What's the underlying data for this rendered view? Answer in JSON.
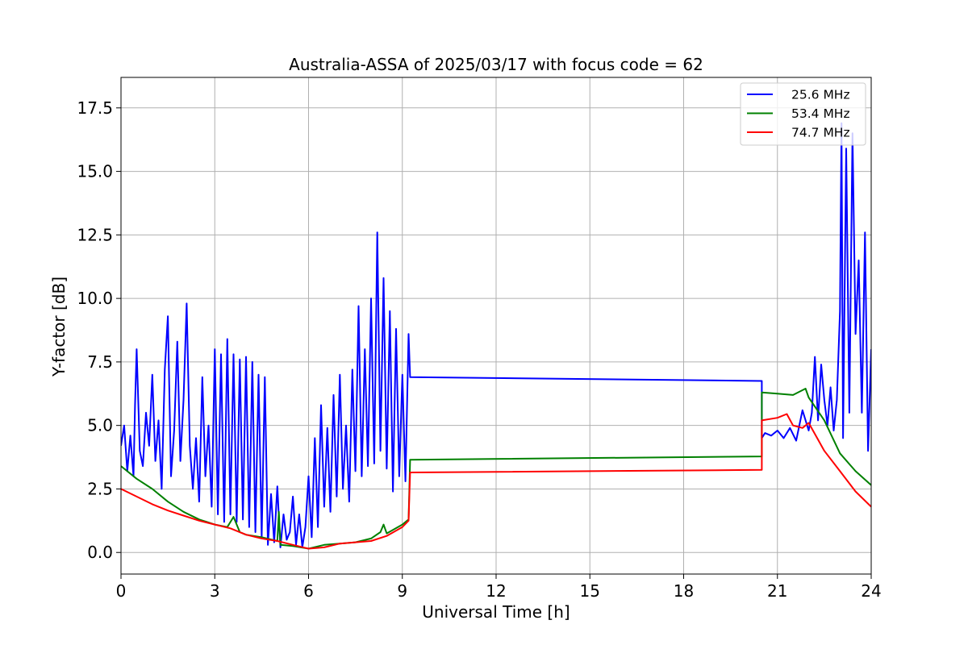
{
  "chart_data": {
    "type": "line",
    "title": "Australia-ASSA of 2025/03/17 with focus code = 62",
    "xlabel": "Universal Time [h]",
    "ylabel": "Y-factor [dB]",
    "xlim": [
      0,
      24
    ],
    "ylim": [
      -0.85,
      18.7
    ],
    "x_ticks": [
      0,
      3,
      6,
      9,
      12,
      15,
      18,
      21,
      24
    ],
    "x_tick_labels": [
      "0",
      "3",
      "6",
      "9",
      "12",
      "15",
      "18",
      "21",
      "24"
    ],
    "y_ticks": [
      0.0,
      2.5,
      5.0,
      7.5,
      10.0,
      12.5,
      15.0,
      17.5
    ],
    "y_tick_labels": [
      "0.0",
      "2.5",
      "5.0",
      "7.5",
      "10.0",
      "12.5",
      "15.0",
      "17.5"
    ],
    "grid": true,
    "legend_position": "upper right",
    "series": [
      {
        "name": "25.6 MHz",
        "color": "#0000ff",
        "x": [
          0.0,
          0.1,
          0.2,
          0.3,
          0.4,
          0.45,
          0.5,
          0.6,
          0.7,
          0.8,
          0.9,
          1.0,
          1.1,
          1.2,
          1.3,
          1.4,
          1.5,
          1.6,
          1.7,
          1.8,
          1.9,
          2.0,
          2.1,
          2.2,
          2.3,
          2.4,
          2.5,
          2.6,
          2.7,
          2.8,
          2.9,
          3.0,
          3.1,
          3.2,
          3.3,
          3.4,
          3.5,
          3.6,
          3.7,
          3.8,
          3.9,
          4.0,
          4.1,
          4.2,
          4.3,
          4.4,
          4.5,
          4.6,
          4.7,
          4.8,
          4.9,
          5.0,
          5.1,
          5.2,
          5.3,
          5.4,
          5.5,
          5.6,
          5.7,
          5.8,
          5.9,
          6.0,
          6.1,
          6.2,
          6.3,
          6.4,
          6.5,
          6.6,
          6.7,
          6.8,
          6.9,
          7.0,
          7.1,
          7.2,
          7.3,
          7.4,
          7.5,
          7.6,
          7.7,
          7.8,
          7.9,
          8.0,
          8.1,
          8.2,
          8.3,
          8.4,
          8.5,
          8.6,
          8.7,
          8.8,
          8.9,
          9.0,
          9.1,
          9.2,
          9.25,
          20.5,
          20.5,
          20.6,
          20.8,
          21.0,
          21.2,
          21.4,
          21.6,
          21.8,
          22.0,
          22.1,
          22.2,
          22.3,
          22.4,
          22.5,
          22.6,
          22.7,
          22.8,
          22.9,
          23.0,
          23.05,
          23.1,
          23.2,
          23.3,
          23.4,
          23.5,
          23.6,
          23.7,
          23.8,
          23.9,
          24.0
        ],
        "y": [
          4.2,
          5.0,
          3.2,
          4.6,
          3.0,
          5.8,
          8.0,
          4.0,
          3.4,
          5.5,
          4.2,
          7.0,
          3.6,
          5.2,
          2.5,
          7.2,
          9.3,
          3.0,
          4.8,
          8.3,
          3.6,
          6.0,
          9.8,
          4.2,
          2.5,
          4.5,
          2.0,
          6.9,
          3.0,
          5.0,
          1.8,
          8.0,
          1.5,
          7.8,
          1.2,
          8.4,
          1.5,
          7.8,
          1.2,
          7.6,
          1.3,
          7.7,
          1.0,
          7.5,
          0.8,
          7.0,
          0.6,
          6.9,
          0.3,
          2.3,
          0.4,
          2.6,
          0.2,
          1.5,
          0.5,
          0.8,
          2.2,
          0.3,
          1.5,
          0.2,
          1.0,
          3.0,
          0.6,
          4.5,
          1.0,
          5.8,
          1.8,
          4.9,
          1.6,
          6.2,
          2.2,
          7.0,
          2.5,
          5.0,
          2.0,
          7.2,
          3.2,
          9.7,
          3.0,
          8.0,
          3.4,
          10.0,
          3.5,
          12.6,
          4.0,
          10.8,
          3.3,
          9.5,
          2.4,
          8.8,
          3.0,
          7.0,
          2.8,
          8.6,
          6.9,
          6.75,
          4.5,
          4.7,
          4.6,
          4.8,
          4.5,
          4.9,
          4.4,
          5.6,
          4.8,
          5.5,
          7.7,
          5.2,
          7.4,
          6.0,
          5.0,
          6.5,
          4.8,
          6.0,
          9.5,
          16.9,
          4.5,
          15.9,
          5.5,
          16.5,
          8.6,
          11.5,
          5.5,
          12.6,
          4.0,
          8.0
        ]
      },
      {
        "name": "53.4 MHz",
        "color": "#008000",
        "x": [
          0.0,
          0.5,
          1.0,
          1.5,
          2.0,
          2.5,
          3.0,
          3.4,
          3.6,
          3.8,
          4.0,
          4.5,
          5.0,
          5.05,
          5.1,
          5.5,
          6.0,
          6.5,
          7.0,
          7.5,
          8.0,
          8.3,
          8.4,
          8.5,
          9.0,
          9.2,
          9.25,
          20.5,
          20.5,
          21.0,
          21.5,
          21.9,
          22.0,
          22.5,
          23.0,
          23.5,
          24.0
        ],
        "y": [
          3.4,
          2.9,
          2.5,
          2.0,
          1.6,
          1.3,
          1.1,
          1.0,
          1.4,
          0.8,
          0.7,
          0.6,
          0.45,
          1.6,
          0.3,
          0.25,
          0.15,
          0.3,
          0.35,
          0.4,
          0.55,
          0.8,
          1.1,
          0.75,
          1.1,
          1.3,
          3.65,
          3.78,
          6.3,
          6.25,
          6.2,
          6.45,
          6.1,
          5.2,
          3.9,
          3.2,
          2.65
        ]
      },
      {
        "name": "74.7 MHz",
        "color": "#ff0000",
        "x": [
          0.0,
          0.5,
          1.0,
          1.5,
          2.0,
          2.5,
          3.0,
          3.5,
          4.0,
          4.5,
          5.0,
          5.5,
          6.0,
          6.5,
          7.0,
          7.5,
          8.0,
          8.5,
          9.0,
          9.2,
          9.25,
          20.5,
          20.5,
          21.0,
          21.3,
          21.5,
          21.8,
          22.0,
          22.5,
          23.0,
          23.5,
          24.0
        ],
        "y": [
          2.5,
          2.2,
          1.9,
          1.65,
          1.45,
          1.25,
          1.1,
          0.95,
          0.7,
          0.55,
          0.45,
          0.3,
          0.15,
          0.2,
          0.35,
          0.4,
          0.45,
          0.65,
          1.0,
          1.25,
          3.15,
          3.25,
          5.2,
          5.3,
          5.45,
          5.0,
          4.9,
          5.1,
          4.0,
          3.2,
          2.4,
          1.8
        ]
      }
    ]
  }
}
